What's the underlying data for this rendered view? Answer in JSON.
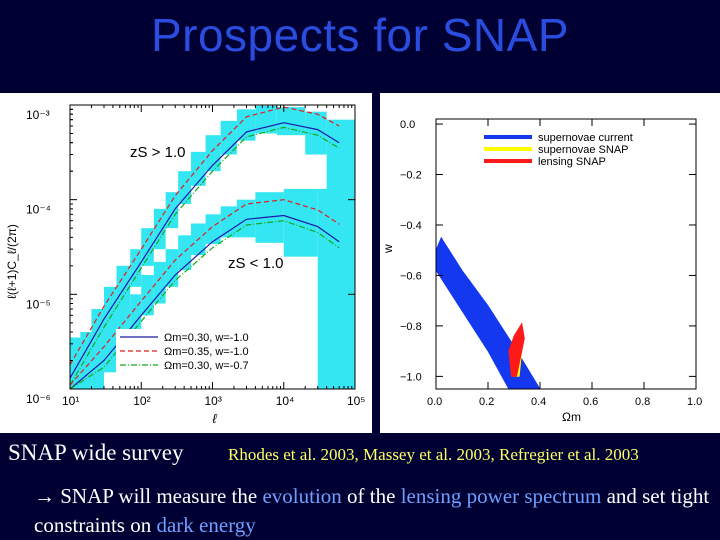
{
  "slide": {
    "title": "Prospects for SNAP",
    "caption_left": "SNAP wide survey",
    "caption_right": "Rhodes et al. 2003, Massey et al. 2003, Refregier et al. 2003",
    "bullet": {
      "arrow": "→",
      "part1": " SNAP will measure the ",
      "hl1": "evolution",
      "part2": " of the ",
      "hl2": "lensing power spectrum",
      "part3": " and set tight constraints on ",
      "hl3": "dark energy"
    }
  },
  "chart_data": [
    {
      "type": "line",
      "xlabel": "ℓ",
      "ylabel": "ℓ(ℓ+1)C_ℓ/(2π)",
      "x_scale": "log",
      "y_scale": "log",
      "xlim": [
        10,
        100000
      ],
      "ylim": [
        1e-06,
        0.001
      ],
      "x_tick_labels": [
        "10¹",
        "10²",
        "10³",
        "10⁴",
        "10⁵"
      ],
      "y_tick_labels": [
        "10⁻³",
        "10⁻⁴",
        "10⁻⁵",
        "10⁻⁶"
      ],
      "annotations": [
        "zS > 1.0",
        "zS < 1.0"
      ],
      "legend": [
        "Ωm=0.30, w=-1.0",
        "Ωm=0.35, w=-1.0",
        "Ωm=0.30, w=-0.7"
      ],
      "colors": {
        "error_band": "#33e6f2",
        "solid": "#1a1aa8",
        "dashed": "#e01f1f",
        "dashdot": "#18a818"
      },
      "series": [
        {
          "name": "Ωm=0.30, w=-1.0",
          "group": "zS > 1.0",
          "style": "solid",
          "x": [
            10,
            30,
            100,
            300,
            1000,
            3000,
            10000,
            30000,
            60000
          ],
          "y": [
            1.3e-06,
            5.5e-06,
            2.2e-05,
            8e-05,
            0.00023,
            0.00052,
            0.00065,
            0.00055,
            0.0004
          ]
        },
        {
          "name": "Ωm=0.35, w=-1.0",
          "group": "zS > 1.0",
          "style": "dashed",
          "x": [
            10,
            30,
            100,
            300,
            1000,
            3000,
            10000,
            30000,
            60000
          ],
          "y": [
            1.8e-06,
            7.5e-06,
            3e-05,
            0.00011,
            0.00033,
            0.00075,
            0.00095,
            0.0008,
            0.0006
          ]
        },
        {
          "name": "Ωm=0.30, w=-0.7",
          "group": "zS > 1.0",
          "style": "dashdot",
          "x": [
            10,
            30,
            100,
            300,
            1000,
            3000,
            10000,
            30000,
            60000
          ],
          "y": [
            1.1e-06,
            4.5e-06,
            1.9e-05,
            7e-05,
            0.0002,
            0.00046,
            0.00058,
            0.00048,
            0.00035
          ]
        },
        {
          "name": "Ωm=0.30, w=-1.0",
          "group": "zS < 1.0",
          "style": "solid",
          "x": [
            10,
            30,
            100,
            300,
            1000,
            3000,
            10000,
            30000,
            60000
          ],
          "y": [
            8e-07,
            2e-06,
            6e-06,
            1.6e-05,
            3.6e-05,
            6.2e-05,
            6.8e-05,
            5.2e-05,
            3.6e-05
          ]
        },
        {
          "name": "Ωm=0.35, w=-1.0",
          "group": "zS < 1.0",
          "style": "dashed",
          "x": [
            10,
            30,
            100,
            300,
            1000,
            3000,
            10000,
            30000,
            60000
          ],
          "y": [
            1.1e-06,
            2.8e-06,
            8.5e-06,
            2.3e-05,
            5.2e-05,
            9e-05,
            0.0001,
            7.8e-05,
            5.5e-05
          ]
        },
        {
          "name": "Ωm=0.30, w=-0.7",
          "group": "zS < 1.0",
          "style": "dashdot",
          "x": [
            10,
            30,
            100,
            300,
            1000,
            3000,
            10000,
            30000,
            60000
          ],
          "y": [
            7e-07,
            1.7e-06,
            5.2e-06,
            1.4e-05,
            3.1e-05,
            5.4e-05,
            6e-05,
            4.5e-05,
            3.1e-05
          ]
        }
      ],
      "error_bands": [
        {
          "group": "zS > 1.0",
          "bins": [
            {
              "x": [
                10,
                14
              ],
              "y": [
                8e-07,
                2.5e-06
              ]
            },
            {
              "x": [
                14,
                20
              ],
              "y": [
                1.2e-06,
                4e-06
              ]
            },
            {
              "x": [
                20,
                30
              ],
              "y": [
                2e-06,
                7e-06
              ]
            },
            {
              "x": [
                30,
                45
              ],
              "y": [
                3e-06,
                1.2e-05
              ]
            },
            {
              "x": [
                45,
                70
              ],
              "y": [
                6e-06,
                2e-05
              ]
            },
            {
              "x": [
                70,
                100
              ],
              "y": [
                1.2e-05,
                3e-05
              ]
            },
            {
              "x": [
                100,
                150
              ],
              "y": [
                2e-05,
                5e-05
              ]
            },
            {
              "x": [
                150,
                220
              ],
              "y": [
                3e-05,
                8e-05
              ]
            },
            {
              "x": [
                220,
                330
              ],
              "y": [
                5e-05,
                0.00012
              ]
            },
            {
              "x": [
                330,
                500
              ],
              "y": [
                9e-05,
                0.0002
              ]
            },
            {
              "x": [
                500,
                800
              ],
              "y": [
                0.00014,
                0.00032
              ]
            },
            {
              "x": [
                800,
                1300
              ],
              "y": [
                0.0002,
                0.00048
              ]
            },
            {
              "x": [
                1300,
                2200
              ],
              "y": [
                0.0003,
                0.00068
              ]
            },
            {
              "x": [
                2200,
                4000
              ],
              "y": [
                0.00042,
                0.0009
              ]
            },
            {
              "x": [
                4000,
                8000
              ],
              "y": [
                0.0005,
                0.00098
              ]
            },
            {
              "x": [
                8000,
                20000
              ],
              "y": [
                0.00048,
                0.00095
              ]
            },
            {
              "x": [
                20000,
                40000
              ],
              "y": [
                0.0003,
                0.00085
              ]
            },
            {
              "x": [
                40000,
                100000
              ],
              "y": [
                0.00012,
                0.0007
              ]
            }
          ]
        },
        {
          "group": "zS < 1.0",
          "bins": [
            {
              "x": [
                10,
                14
              ],
              "y": [
                1e-06,
                3.5e-06
              ]
            },
            {
              "x": [
                14,
                20
              ],
              "y": [
                1e-06,
                4e-06
              ]
            },
            {
              "x": [
                20,
                30
              ],
              "y": [
                1e-06,
                4.5e-06
              ]
            },
            {
              "x": [
                30,
                45
              ],
              "y": [
                1.5e-06,
                4e-06
              ]
            },
            {
              "x": [
                45,
                70
              ],
              "y": [
                2.5e-06,
                6.5e-06
              ]
            },
            {
              "x": [
                70,
                100
              ],
              "y": [
                3.5e-06,
                1e-05
              ]
            },
            {
              "x": [
                100,
                150
              ],
              "y": [
                6e-06,
                1.6e-05
              ]
            },
            {
              "x": [
                150,
                220
              ],
              "y": [
                8e-06,
                2.2e-05
              ]
            },
            {
              "x": [
                220,
                330
              ],
              "y": [
                1.2e-05,
                3e-05
              ]
            },
            {
              "x": [
                330,
                500
              ],
              "y": [
                1.8e-05,
                4.2e-05
              ]
            },
            {
              "x": [
                500,
                800
              ],
              "y": [
                2.6e-05,
                5.6e-05
              ]
            },
            {
              "x": [
                800,
                1300
              ],
              "y": [
                3.4e-05,
                7e-05
              ]
            },
            {
              "x": [
                1300,
                2200
              ],
              "y": [
                4e-05,
                8.5e-05
              ]
            },
            {
              "x": [
                2200,
                4000
              ],
              "y": [
                4e-05,
                0.0001
              ]
            },
            {
              "x": [
                4000,
                10000
              ],
              "y": [
                3.5e-05,
                0.00012
              ]
            },
            {
              "x": [
                10000,
                30000
              ],
              "y": [
                2.5e-05,
                0.00013
              ]
            },
            {
              "x": [
                30000,
                100000
              ],
              "y": [
                1e-06,
                0.00013
              ]
            }
          ]
        }
      ]
    },
    {
      "type": "area",
      "xlabel": "Ωm",
      "ylabel": "w",
      "xlim": [
        0.0,
        1.0
      ],
      "ylim": [
        -1.05,
        0.02
      ],
      "x_ticks": [
        0.0,
        0.2,
        0.4,
        0.6,
        0.8,
        1.0
      ],
      "y_ticks": [
        0.0,
        -0.2,
        -0.4,
        -0.6,
        -0.8,
        -1.0
      ],
      "x_tick_labels": [
        "0.0",
        "0.2",
        "0.4",
        "0.6",
        "0.8",
        "1.0"
      ],
      "y_tick_labels": [
        "0.0",
        "−0.2",
        "−0.4",
        "−0.6",
        "−0.8",
        "−1.0"
      ],
      "legend_position": "top-right",
      "series": [
        {
          "name": "supernovae current",
          "color": "#1438f0",
          "polygon": [
            [
              0.0,
              -0.5
            ],
            [
              0.0,
              -0.58
            ],
            [
              0.1,
              -0.74
            ],
            [
              0.2,
              -0.9
            ],
            [
              0.28,
              -1.05
            ],
            [
              0.4,
              -1.05
            ],
            [
              0.3,
              -0.88
            ],
            [
              0.2,
              -0.72
            ],
            [
              0.1,
              -0.58
            ],
            [
              0.02,
              -0.45
            ]
          ]
        },
        {
          "name": "supernovae SNAP",
          "color": "#ffff00",
          "polygon": [
            [
              0.3,
              -1.0
            ],
            [
              0.3,
              -0.88
            ],
            [
              0.32,
              -0.82
            ],
            [
              0.33,
              -0.9
            ],
            [
              0.32,
              -1.0
            ]
          ]
        },
        {
          "name": "lensing SNAP",
          "color": "#ff1a1a",
          "polygon": [
            [
              0.29,
              -1.0
            ],
            [
              0.28,
              -0.9
            ],
            [
              0.3,
              -0.84
            ],
            [
              0.33,
              -0.79
            ],
            [
              0.34,
              -0.85
            ],
            [
              0.31,
              -1.0
            ]
          ]
        }
      ]
    }
  ]
}
